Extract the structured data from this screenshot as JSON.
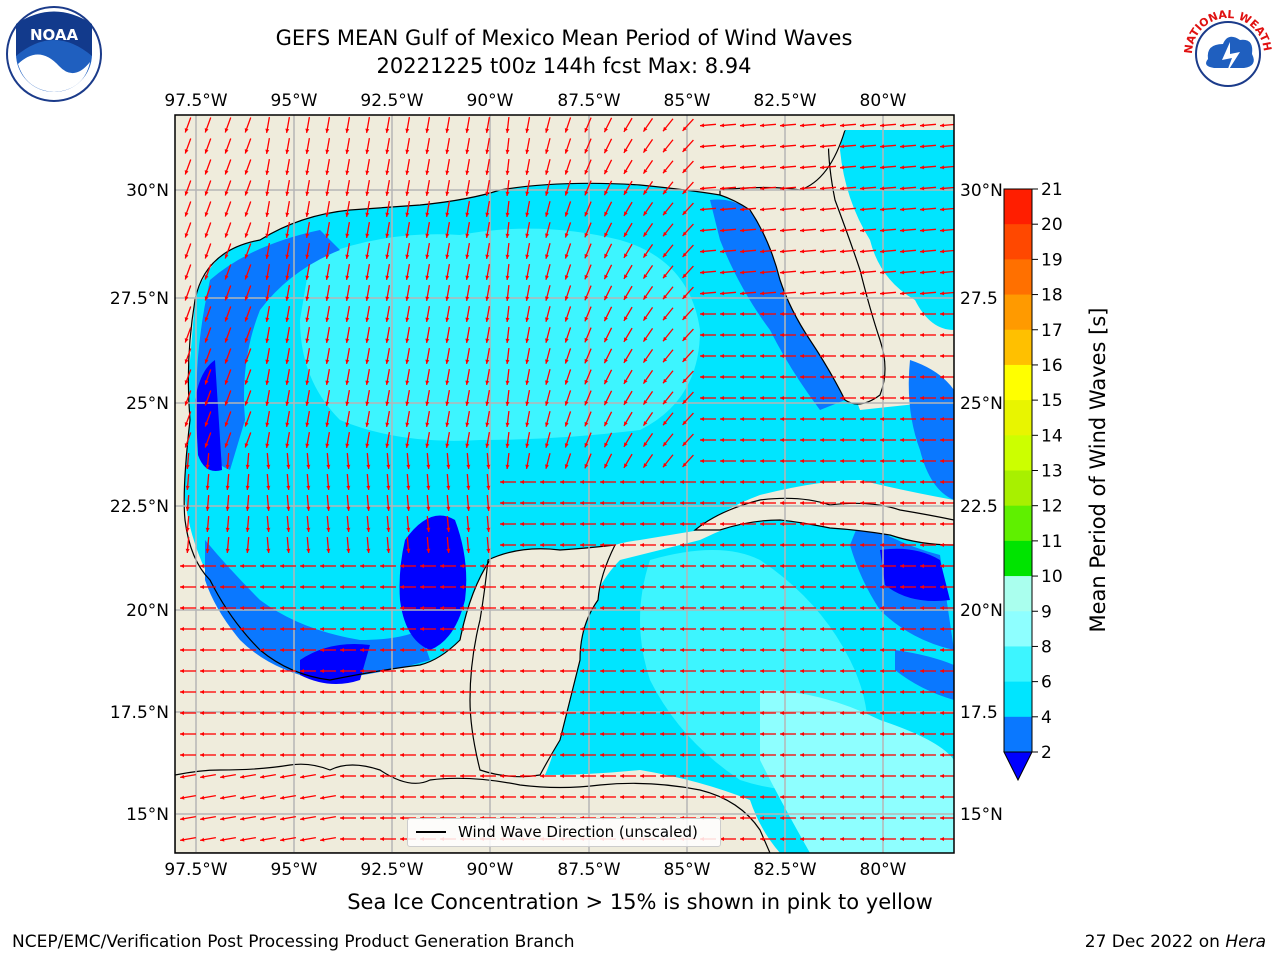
{
  "title": {
    "line1": "GEFS MEAN Gulf of Mexico Mean Period of Wind Waves",
    "line2": "20221225 t00z 144h fcst   Max: 8.94"
  },
  "map": {
    "lon_labels": [
      "97.5°W",
      "95°W",
      "92.5°W",
      "90°W",
      "87.5°W",
      "85°W",
      "82.5°W",
      "80°W"
    ],
    "lat_labels_left": [
      "30°N",
      "27.5°N",
      "25°N",
      "22.5°N",
      "20°N",
      "17.5°N",
      "15°N"
    ],
    "lat_labels_right": [
      "30°N",
      "27.5",
      "25°N",
      "22.5",
      "20°N",
      "17.5",
      "15°N"
    ],
    "legend": "Wind Wave Direction (unscaled)",
    "arrow_color": "#ff0000",
    "land_color": "#efecdc"
  },
  "colorbar": {
    "title": "Mean Period of Wind Waves [s]",
    "tick_labels": [
      "2",
      "4",
      "6",
      "8",
      "9",
      "10",
      "11",
      "12",
      "13",
      "14",
      "15",
      "16",
      "17",
      "18",
      "19",
      "20",
      "21"
    ],
    "colors": [
      "#0000ff",
      "#0a78ff",
      "#00e5ff",
      "#3df5ff",
      "#8effff",
      "#aaffee",
      "#5aff90",
      "#00e400",
      "#5ff000",
      "#a8f000",
      "#ccff00",
      "#e8f500",
      "#ffff00",
      "#ffe000",
      "#ffc000",
      "#ff9a00",
      "#ff7000",
      "#ff4800",
      "#ff1e00",
      "#ff0000"
    ]
  },
  "note": "Sea Ice Concentration > 15% is shown in pink to yellow",
  "footer": {
    "left": "NCEP/EMC/Verification Post Processing Product Generation Branch",
    "right_date": "27 Dec 2022 on",
    "right_machine": "Hera"
  },
  "logos": {
    "noaa_text": "NOAA",
    "nws_text": "NATIONAL WEATHER SERVICE"
  }
}
